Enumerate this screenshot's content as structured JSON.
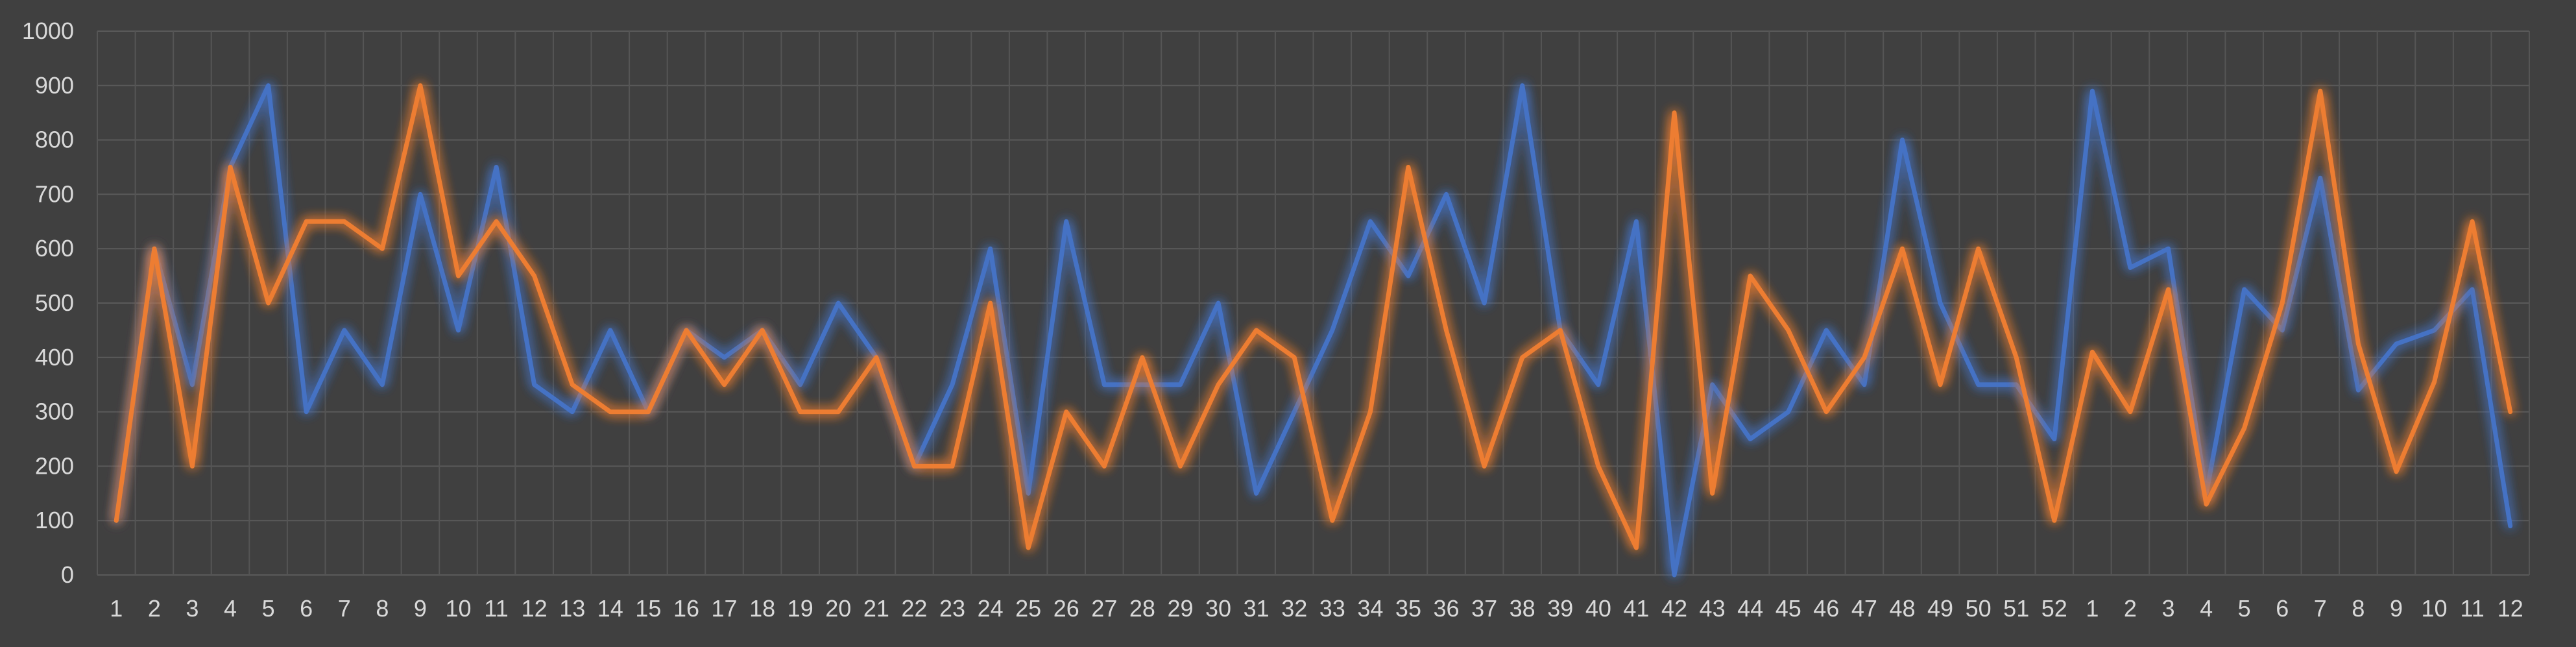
{
  "chart_data": {
    "type": "line",
    "title": "",
    "xlabel": "",
    "ylabel": "",
    "ylim": [
      0,
      1000
    ],
    "yticks": [
      0,
      100,
      200,
      300,
      400,
      500,
      600,
      700,
      800,
      900,
      1000
    ],
    "grid": true,
    "legend": "none",
    "categories": [
      "1",
      "2",
      "3",
      "4",
      "5",
      "6",
      "7",
      "8",
      "9",
      "10",
      "11",
      "12",
      "13",
      "14",
      "15",
      "16",
      "17",
      "18",
      "19",
      "20",
      "21",
      "22",
      "23",
      "24",
      "25",
      "26",
      "27",
      "28",
      "29",
      "30",
      "31",
      "32",
      "33",
      "34",
      "35",
      "36",
      "37",
      "38",
      "39",
      "40",
      "41",
      "42",
      "43",
      "44",
      "45",
      "46",
      "47",
      "48",
      "49",
      "50",
      "51",
      "52",
      "1",
      "2",
      "3",
      "4",
      "5",
      "6",
      "7",
      "8",
      "9",
      "10",
      "11",
      "12"
    ],
    "series": [
      {
        "color": "#4472c4",
        "values": [
          100,
          600,
          350,
          750,
          900,
          300,
          450,
          350,
          700,
          450,
          750,
          350,
          300,
          450,
          300,
          450,
          400,
          450,
          350,
          500,
          400,
          200,
          350,
          600,
          150,
          650,
          350,
          350,
          350,
          500,
          150,
          300,
          450,
          650,
          550,
          700,
          500,
          900,
          450,
          350,
          650,
          0,
          350,
          250,
          300,
          450,
          350,
          800,
          500,
          350,
          350,
          250,
          890,
          565,
          600,
          150,
          525,
          450,
          730,
          340,
          425,
          450,
          525,
          90
        ]
      },
      {
        "color": "#ed7d31",
        "values": [
          100,
          600,
          200,
          750,
          500,
          650,
          650,
          600,
          900,
          550,
          650,
          550,
          350,
          300,
          300,
          450,
          350,
          450,
          300,
          300,
          400,
          200,
          200,
          500,
          50,
          300,
          200,
          400,
          200,
          350,
          450,
          400,
          100,
          300,
          750,
          450,
          200,
          400,
          450,
          200,
          50,
          850,
          150,
          550,
          450,
          300,
          400,
          600,
          350,
          600,
          400,
          100,
          410,
          300,
          525,
          130,
          270,
          500,
          890,
          425,
          190,
          355,
          650,
          300
        ]
      }
    ]
  }
}
